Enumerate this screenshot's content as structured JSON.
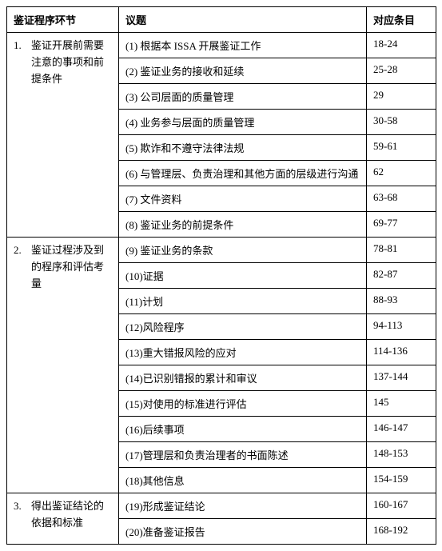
{
  "headers": {
    "col1": "鉴证程序环节",
    "col2": "议题",
    "col3": "对应条目"
  },
  "phases": [
    {
      "num": "1.",
      "text": "鉴证开展前需要注意的事项和前提条件",
      "span": 8
    },
    {
      "num": "2.",
      "text": "鉴证过程涉及到的程序和评估考量",
      "span": 10
    },
    {
      "num": "3.",
      "text": "得出鉴证结论的依据和标准",
      "span": 2
    }
  ],
  "rows": [
    {
      "topic": "(1) 根据本 ISSA 开展鉴证工作",
      "ref": "18-24"
    },
    {
      "topic": "(2) 鉴证业务的接收和延续",
      "ref": "25-28"
    },
    {
      "topic": "(3) 公司层面的质量管理",
      "ref": "29"
    },
    {
      "topic": "(4) 业务参与层面的质量管理",
      "ref": "30-58"
    },
    {
      "topic": "(5) 欺诈和不遵守法律法规",
      "ref": "59-61"
    },
    {
      "topic": "(6) 与管理层、负责治理和其他方面的层级进行沟通",
      "ref": "62"
    },
    {
      "topic": "(7) 文件资料",
      "ref": "63-68"
    },
    {
      "topic": "(8) 鉴证业务的前提条件",
      "ref": "69-77"
    },
    {
      "topic": "(9) 鉴证业务的条款",
      "ref": "78-81"
    },
    {
      "topic": "(10)证据",
      "ref": "82-87"
    },
    {
      "topic": "(11)计划",
      "ref": "88-93"
    },
    {
      "topic": "(12)风险程序",
      "ref": "94-113"
    },
    {
      "topic": "(13)重大错报风险的应对",
      "ref": "114-136"
    },
    {
      "topic": "(14)已识别错报的累计和审议",
      "ref": "137-144"
    },
    {
      "topic": "(15)对使用的标准进行评估",
      "ref": "145"
    },
    {
      "topic": "(16)后续事项",
      "ref": "146-147"
    },
    {
      "topic": "(17)管理层和负责治理者的书面陈述",
      "ref": "148-153"
    },
    {
      "topic": "(18)其他信息",
      "ref": "154-159"
    },
    {
      "topic": "(19)形成鉴证结论",
      "ref": "160-167"
    },
    {
      "topic": "(20)准备鉴证报告",
      "ref": "168-192"
    }
  ]
}
